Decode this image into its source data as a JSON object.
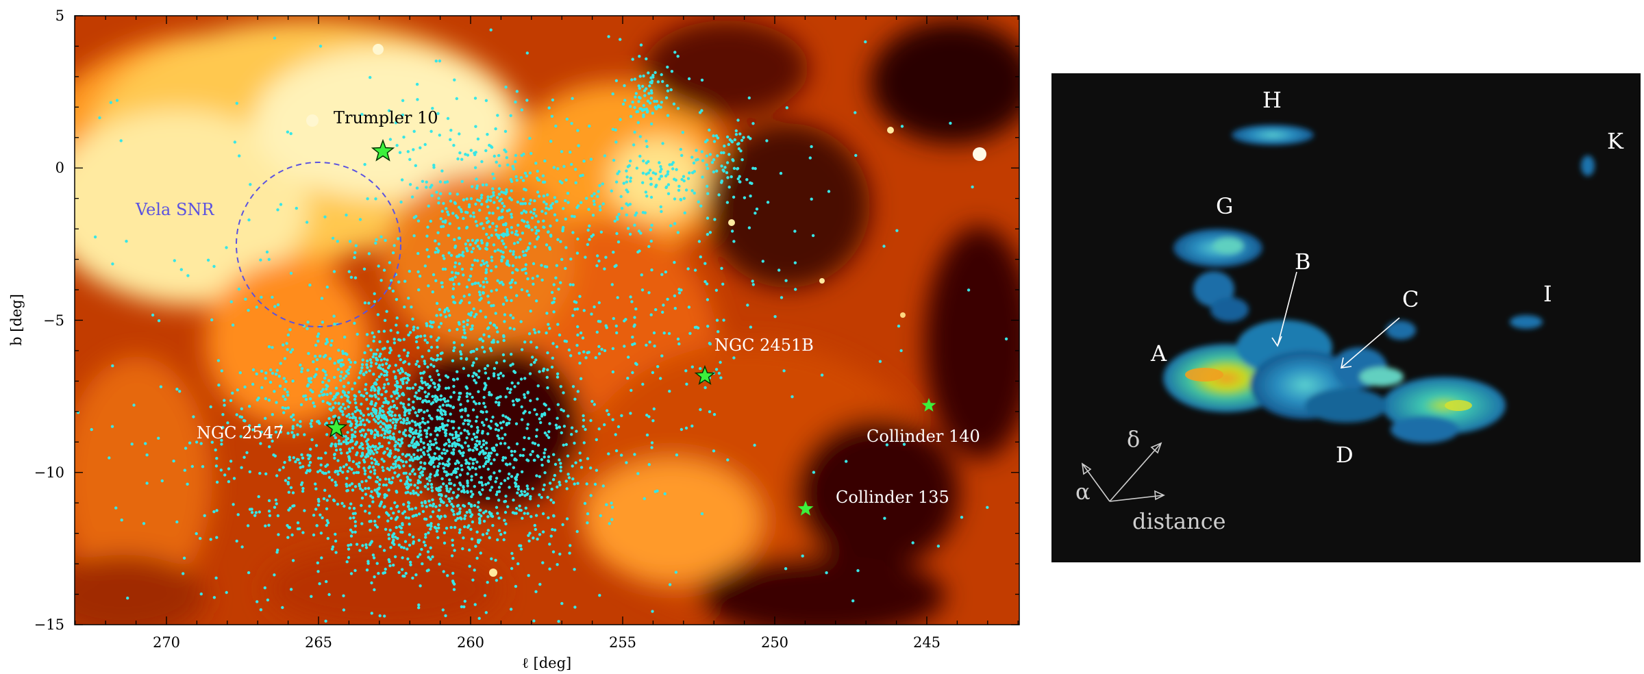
{
  "left": {
    "xlabel": "ℓ [deg]",
    "ylabel": "b [deg]",
    "x_ticks": [
      "270",
      "265",
      "260",
      "255",
      "250",
      "245"
    ],
    "y_ticks": [
      "5",
      "0",
      "−5",
      "−10",
      "−15"
    ],
    "labels": {
      "vela": "Vela SNR",
      "trumpler": "Trumpler 10",
      "ngc2451b": "NGC 2451B",
      "ngc2547": "NGC 2547",
      "collinder140": "Collinder 140",
      "collinder135": "Collinder 135"
    },
    "colors": {
      "vela_label": "#5a52e0",
      "star_marker": "#3cf03c",
      "scatter": "#38e6e6"
    }
  },
  "right": {
    "labels": {
      "A": "A",
      "B": "B",
      "C": "C",
      "D": "D",
      "G": "G",
      "H": "H",
      "I": "I",
      "K": "K"
    },
    "axes": {
      "delta": "δ",
      "alpha": "α",
      "distance": "distance"
    }
  }
}
